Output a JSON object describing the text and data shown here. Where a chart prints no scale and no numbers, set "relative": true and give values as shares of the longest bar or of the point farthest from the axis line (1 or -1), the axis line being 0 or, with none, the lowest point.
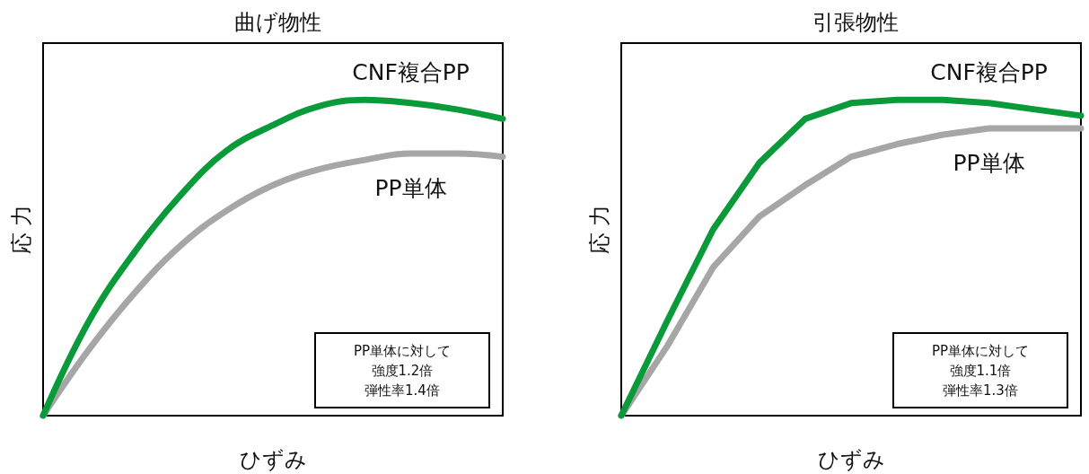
{
  "chart_data": [
    {
      "type": "line",
      "title": "曲げ物性",
      "xlabel": "ひずみ",
      "ylabel": "応 力",
      "relative": true,
      "categories": [
        null,
        null,
        null,
        null,
        null,
        null,
        null,
        null,
        null,
        null,
        null
      ],
      "series": [
        {
          "name": "CNF複合PP",
          "color": "#0a9a3a",
          "values": [
            0,
            0.3,
            0.52,
            0.7,
            0.84,
            0.92,
            0.98,
            1.0,
            0.99,
            0.97,
            0.94
          ]
        },
        {
          "name": "PP単体",
          "color": "#a6a6a6",
          "values": [
            0,
            0.21,
            0.39,
            0.54,
            0.65,
            0.73,
            0.78,
            0.81,
            0.83,
            0.83,
            0.82
          ]
        }
      ],
      "annotations": [
        "PP単体に対して",
        "強度1.2倍",
        "弾性率1.4倍"
      ],
      "legend": false,
      "tick_labels": false,
      "marker": "none",
      "line_style": "solid"
    },
    {
      "type": "line",
      "title": "引張物性",
      "xlabel": "ひずみ",
      "ylabel": "応 力",
      "relative": true,
      "categories": [
        null,
        null,
        null,
        null,
        null,
        null,
        null,
        null,
        null,
        null,
        null
      ],
      "series": [
        {
          "name": "CNF複合PP",
          "color": "#0a9a3a",
          "values": [
            0,
            0.3,
            0.59,
            0.8,
            0.94,
            0.99,
            1.0,
            1.0,
            0.99,
            0.97,
            0.95
          ]
        },
        {
          "name": "PP単体",
          "color": "#a6a6a6",
          "values": [
            0,
            0.22,
            0.47,
            0.63,
            0.73,
            0.82,
            0.86,
            0.89,
            0.91,
            0.91,
            0.91
          ]
        }
      ],
      "annotations": [
        "PP単体に対して",
        "強度1.1倍",
        "弾性率1.3倍"
      ],
      "legend": false,
      "tick_labels": false,
      "marker": "none",
      "line_style": "solid"
    }
  ]
}
